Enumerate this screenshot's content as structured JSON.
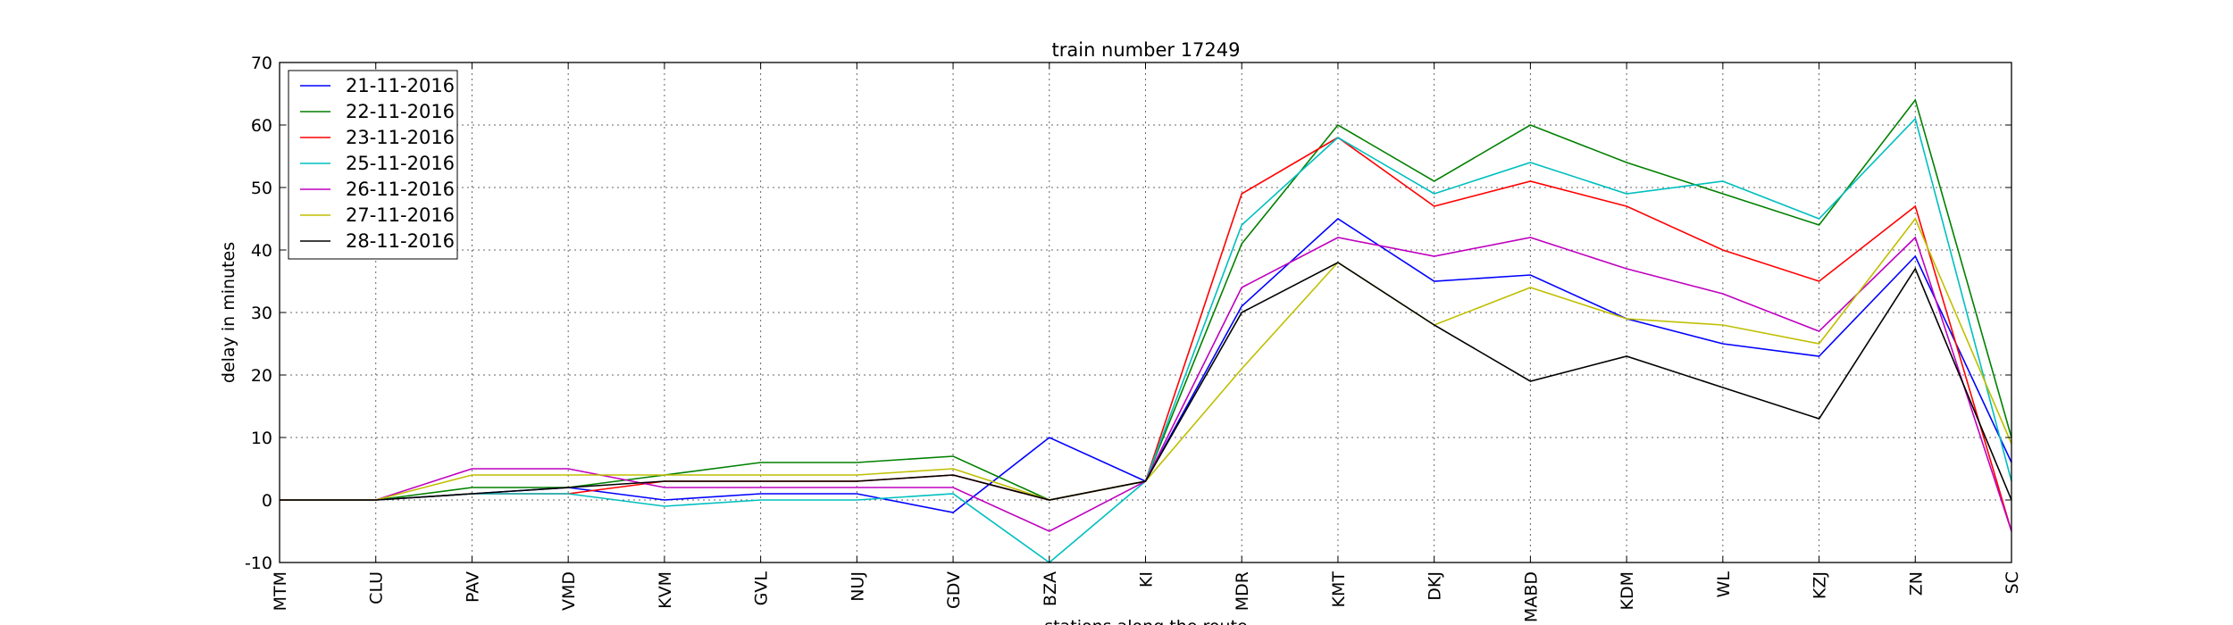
{
  "chart_data": {
    "type": "line",
    "title": "train number 17249",
    "xlabel": "stations along the route",
    "ylabel": "delay in minutes",
    "ylim": [
      -10,
      70
    ],
    "yticks": [
      -10,
      0,
      10,
      20,
      30,
      40,
      50,
      60,
      70
    ],
    "grid": true,
    "legend_position": "top-left",
    "categories": [
      "MTM",
      "CLU",
      "PAV",
      "VMD",
      "KVM",
      "GVL",
      "NUJ",
      "GDV",
      "BZA",
      "KI",
      "MDR",
      "KMT",
      "DKJ",
      "MABD",
      "KDM",
      "WL",
      "KZJ",
      "ZN",
      "SC"
    ],
    "series": [
      {
        "name": "21-11-2016",
        "color": "#0000ff",
        "values": [
          0,
          0,
          1,
          2,
          0,
          1,
          1,
          -2,
          10,
          3,
          31,
          45,
          35,
          36,
          29,
          25,
          23,
          39,
          6
        ]
      },
      {
        "name": "22-11-2016",
        "color": "#008000",
        "values": [
          0,
          0,
          2,
          2,
          4,
          6,
          6,
          7,
          0,
          3,
          41,
          60,
          51,
          60,
          54,
          49,
          44,
          64,
          10
        ]
      },
      {
        "name": "23-11-2016",
        "color": "#ff0000",
        "values": [
          0,
          0,
          1,
          1,
          3,
          3,
          3,
          4,
          0,
          3,
          49,
          58,
          47,
          51,
          47,
          40,
          35,
          47,
          -5
        ]
      },
      {
        "name": "25-11-2016",
        "color": "#00bfbf",
        "values": [
          0,
          0,
          1,
          1,
          -1,
          0,
          0,
          1,
          -10,
          3,
          44,
          58,
          49,
          54,
          49,
          51,
          45,
          61,
          3
        ]
      },
      {
        "name": "26-11-2016",
        "color": "#bf00bf",
        "values": [
          0,
          0,
          5,
          5,
          2,
          2,
          2,
          2,
          -5,
          3,
          34,
          42,
          39,
          42,
          37,
          33,
          27,
          42,
          -5
        ]
      },
      {
        "name": "27-11-2016",
        "color": "#bfbf00",
        "values": [
          0,
          0,
          4,
          4,
          4,
          4,
          4,
          5,
          0,
          3,
          21,
          38,
          28,
          34,
          29,
          28,
          25,
          45,
          9
        ]
      },
      {
        "name": "28-11-2016",
        "color": "#000000",
        "values": [
          0,
          0,
          1,
          2,
          3,
          3,
          3,
          4,
          0,
          3,
          30,
          38,
          28,
          19,
          23,
          18,
          13,
          37,
          0
        ]
      }
    ]
  }
}
